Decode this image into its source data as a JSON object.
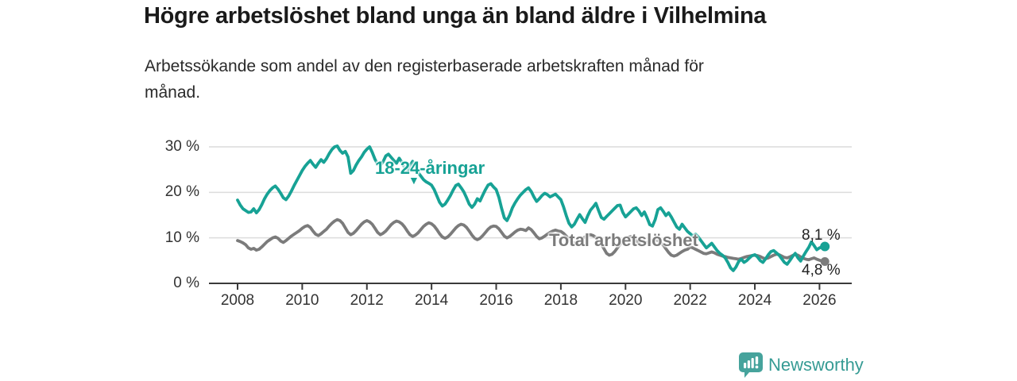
{
  "header": {
    "title": "Högre arbetslöshet bland unga än bland äldre i Vilhelmina",
    "subtitle_line1": "Arbetssökande som andel av den registerbaserade arbetskraften månad för",
    "subtitle_line2": "månad."
  },
  "chart_data": {
    "type": "line",
    "title": "Högre arbetslöshet bland unga än bland äldre i Vilhelmina",
    "subtitle": "Arbetssökande som andel av den registerbaserade arbetskraften månad för månad.",
    "unit": "%",
    "x_start_year": 2008,
    "x_step_months": 1,
    "ylim": [
      0,
      32
    ],
    "grid": "horizontal",
    "y_ticks": [
      {
        "v": 0,
        "label": "0 %"
      },
      {
        "v": 10,
        "label": "10 %"
      },
      {
        "v": 20,
        "label": "20 %"
      },
      {
        "v": 30,
        "label": "30 %"
      }
    ],
    "x_ticks": [
      {
        "year": 2008,
        "label": "2008"
      },
      {
        "year": 2010,
        "label": "2010"
      },
      {
        "year": 2012,
        "label": "2012"
      },
      {
        "year": 2014,
        "label": "2014"
      },
      {
        "year": 2016,
        "label": "2016"
      },
      {
        "year": 2018,
        "label": "2018"
      },
      {
        "year": 2020,
        "label": "2020"
      },
      {
        "year": 2022,
        "label": "2022"
      },
      {
        "year": 2024,
        "label": "2024"
      },
      {
        "year": 2026,
        "label": "2026"
      }
    ],
    "series": [
      {
        "name": "18-24-åringar",
        "color": "#17a295",
        "end_value": 8.1,
        "end_label": "8,1 %",
        "values": [
          18.3,
          17.2,
          16.4,
          16.0,
          15.6,
          15.7,
          16.4,
          15.5,
          16.2,
          17.3,
          18.6,
          19.6,
          20.4,
          21.0,
          21.4,
          20.7,
          19.8,
          18.8,
          18.4,
          19.2,
          20.3,
          21.5,
          22.6,
          23.7,
          24.8,
          25.7,
          26.4,
          27.0,
          26.2,
          25.5,
          26.4,
          27.2,
          26.6,
          27.4,
          28.5,
          29.4,
          30.0,
          30.2,
          29.2,
          28.6,
          29.0,
          27.8,
          24.2,
          24.8,
          26.0,
          27.0,
          27.8,
          28.8,
          29.5,
          30.0,
          28.8,
          27.3,
          26.2,
          25.9,
          26.7,
          28.0,
          28.4,
          27.7,
          27.0,
          26.4,
          27.5,
          26.6,
          25.5,
          24.6,
          25.9,
          26.8,
          25.4,
          24.4,
          23.6,
          22.8,
          22.3,
          22.0,
          21.6,
          20.6,
          19.2,
          17.8,
          17.0,
          17.4,
          18.3,
          19.3,
          20.5,
          21.5,
          21.8,
          21.0,
          20.1,
          18.8,
          17.4,
          16.7,
          17.4,
          18.6,
          18.1,
          19.4,
          20.6,
          21.6,
          21.9,
          21.2,
          20.6,
          18.9,
          16.5,
          14.4,
          13.8,
          15.0,
          16.6,
          17.7,
          18.6,
          19.4,
          20.0,
          20.6,
          21.0,
          20.2,
          19.0,
          18.0,
          18.6,
          19.3,
          19.8,
          19.5,
          19.0,
          19.3,
          19.6,
          19.0,
          18.4,
          16.8,
          14.9,
          13.2,
          12.4,
          13.0,
          14.1,
          15.1,
          14.2,
          13.4,
          14.9,
          16.1,
          16.8,
          17.6,
          16.0,
          14.5,
          14.1,
          14.7,
          15.3,
          15.9,
          16.5,
          17.1,
          17.2,
          15.6,
          14.6,
          15.2,
          15.8,
          16.4,
          16.6,
          15.9,
          14.9,
          15.7,
          14.4,
          12.9,
          12.6,
          14.0,
          16.2,
          16.6,
          15.8,
          14.9,
          15.5,
          14.6,
          13.5,
          12.4,
          11.9,
          13.0,
          12.2,
          11.4,
          10.9,
          10.4,
          10.8,
          10.2,
          9.4,
          8.6,
          7.8,
          8.3,
          8.8,
          8.0,
          7.2,
          6.6,
          6.2,
          5.6,
          4.6,
          3.4,
          2.8,
          3.6,
          4.8,
          5.3,
          4.6,
          5.0,
          5.6,
          6.1,
          6.3,
          5.8,
          5.0,
          4.6,
          5.4,
          6.3,
          7.0,
          7.2,
          6.7,
          6.2,
          5.4,
          4.6,
          4.2,
          5.0,
          5.9,
          6.6,
          5.6,
          4.9,
          6.0,
          7.0,
          7.9,
          9.1,
          8.3,
          7.4,
          7.8,
          8.0,
          8.1
        ]
      },
      {
        "name": "Total arbetslöshet",
        "color": "#7b7b7b",
        "end_value": 4.8,
        "end_label": "4,8 %",
        "values": [
          9.4,
          9.2,
          8.9,
          8.5,
          7.8,
          7.5,
          7.7,
          7.3,
          7.5,
          8.0,
          8.6,
          9.2,
          9.6,
          10.0,
          10.2,
          9.9,
          9.3,
          9.0,
          9.4,
          9.9,
          10.4,
          10.8,
          11.2,
          11.6,
          12.1,
          12.5,
          12.7,
          12.3,
          11.5,
          10.8,
          10.5,
          10.9,
          11.4,
          11.9,
          12.6,
          13.2,
          13.7,
          14.0,
          13.8,
          13.2,
          12.2,
          11.2,
          10.7,
          11.0,
          11.6,
          12.3,
          13.0,
          13.5,
          13.8,
          13.5,
          13.0,
          12.1,
          11.2,
          10.7,
          11.0,
          11.5,
          12.2,
          12.9,
          13.4,
          13.7,
          13.5,
          13.1,
          12.4,
          11.5,
          10.7,
          10.3,
          10.6,
          11.1,
          11.8,
          12.5,
          13.0,
          13.3,
          13.1,
          12.6,
          11.8,
          10.9,
          10.2,
          9.9,
          10.2,
          10.8,
          11.5,
          12.2,
          12.7,
          13.0,
          12.8,
          12.3,
          11.5,
          10.6,
          9.9,
          9.6,
          9.9,
          10.5,
          11.2,
          11.9,
          12.4,
          12.6,
          12.5,
          12.0,
          11.2,
          10.4,
          10.0,
          10.3,
          10.8,
          11.3,
          11.7,
          11.9,
          11.8,
          11.6,
          12.2,
          11.8,
          11.1,
          10.3,
          9.8,
          10.0,
          10.4,
          10.8,
          11.2,
          11.5,
          11.7,
          11.5,
          11.4,
          11.0,
          10.4,
          9.7,
          9.1,
          8.8,
          9.0,
          9.4,
          9.8,
          10.2,
          10.5,
          10.7,
          10.5,
          10.1,
          9.4,
          8.6,
          7.6,
          6.6,
          6.2,
          6.4,
          7.0,
          7.8,
          8.6,
          9.3,
          9.8,
          10.1,
          10.3,
          10.0,
          9.4,
          8.8,
          8.4,
          8.6,
          9.0,
          9.3,
          9.5,
          9.6,
          9.4,
          9.0,
          8.4,
          7.6,
          6.8,
          6.2,
          6.0,
          6.2,
          6.6,
          7.0,
          7.3,
          7.5,
          8.0,
          7.8,
          7.5,
          7.2,
          6.9,
          6.6,
          6.5,
          6.7,
          6.9,
          6.7,
          6.4,
          6.2,
          6.0,
          5.9,
          5.7,
          5.6,
          5.5,
          5.4,
          5.3,
          5.5,
          5.7,
          5.9,
          6.0,
          6.1,
          6.2,
          6.1,
          5.9,
          5.6,
          5.4,
          5.6,
          5.9,
          6.2,
          6.4,
          6.3,
          6.0,
          5.7,
          5.6,
          5.8,
          6.1,
          6.4,
          6.2,
          5.8,
          5.5,
          5.3,
          5.2,
          5.4,
          5.6,
          5.3,
          5.1,
          4.9,
          4.8
        ]
      }
    ],
    "annotations": {
      "series_arrow": "▼"
    },
    "colors": {
      "youth_line": "#17a295",
      "total_line": "#7b7b7b",
      "gridline": "#dcdcdc",
      "axis": "#3a3a3a",
      "tick_text": "#333333"
    }
  },
  "footer": {
    "brand": "Newsworthy",
    "brand_color": "#369b94",
    "logo_icon": "bar-chart-speech-bubble"
  }
}
